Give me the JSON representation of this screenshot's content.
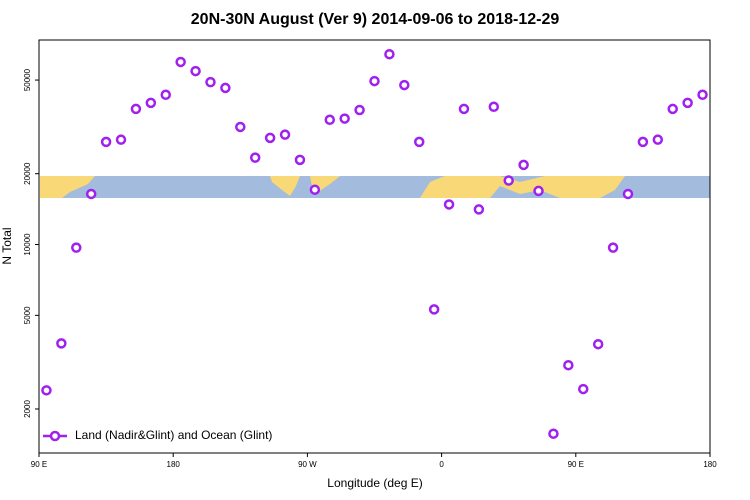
{
  "chart_data": {
    "type": "scatter",
    "title": "20N-30N August (Ver 9)   2014-09-06 to 2018-12-29",
    "x_label": "Longitude (deg E)",
    "y_label": "N Total",
    "xlim": [
      -270,
      180
    ],
    "xticks": [
      {
        "value": -270,
        "label": "90 E"
      },
      {
        "value": -180,
        "label": "180"
      },
      {
        "value": -90,
        "label": "90 W"
      },
      0,
      {
        "value": 90,
        "label": "90 E"
      },
      180
    ],
    "ylim": [
      1300,
      74000
    ],
    "yticks": [
      2000,
      5000,
      10000,
      20000,
      50000
    ],
    "log_y": true,
    "legend": "bottom-left",
    "series": [
      {
        "name": "Land (Nadir&Glint) and Ocean (Glint)",
        "color": "#a020f0",
        "x": [
          -265,
          -255,
          -245,
          -235,
          -225,
          -215,
          -205,
          -195,
          -185,
          -175,
          -165,
          -155,
          -145,
          -135,
          -125,
          -115,
          -105,
          -95,
          -85,
          -75,
          -65,
          -55,
          -45,
          -35,
          -25,
          -15,
          -5,
          5,
          15,
          25,
          35,
          45,
          55,
          65,
          75,
          85,
          95,
          105,
          115,
          125,
          135,
          145,
          155,
          165,
          175
        ],
        "values": [
          2400,
          3800,
          9700,
          16400,
          27300,
          27900,
          37700,
          40000,
          43300,
          59700,
          54600,
          49000,
          46300,
          31600,
          23400,
          28400,
          29300,
          22900,
          17100,
          33900,
          34300,
          37300,
          49500,
          64400,
          47600,
          27300,
          5300,
          14800,
          37700,
          14100,
          38500,
          18700,
          21800,
          16900,
          1570,
          3070,
          2430,
          3770,
          9700,
          16400,
          27300,
          27900,
          37700,
          40000,
          43300
        ]
      }
    ]
  }
}
